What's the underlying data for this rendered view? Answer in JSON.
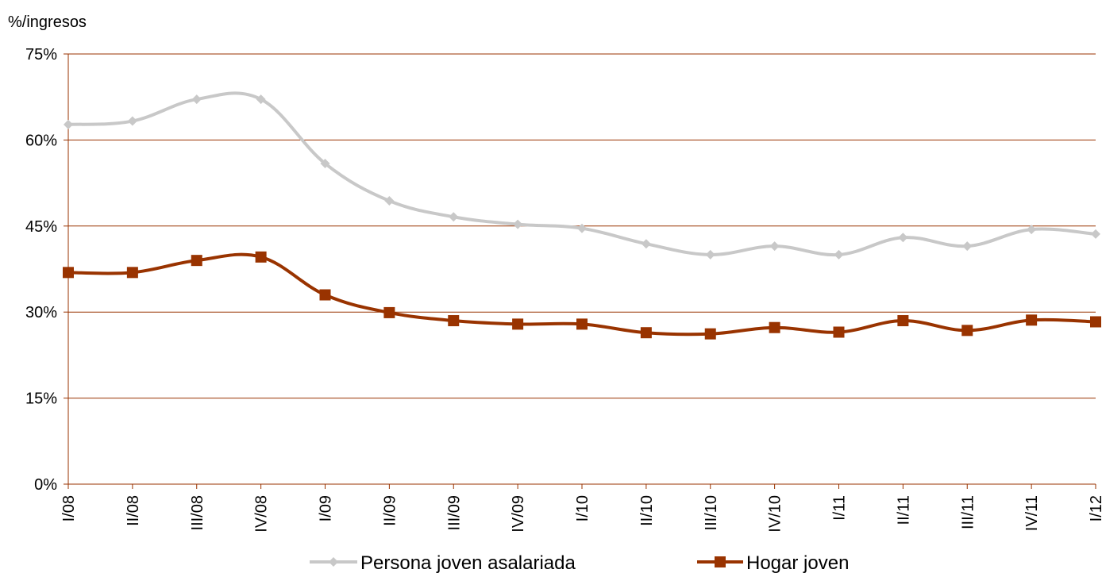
{
  "chart_data": {
    "type": "line",
    "ylabel": "%/ingresos",
    "categories": [
      "I/08",
      "II/08",
      "III/08",
      "IV/08",
      "I/09",
      "II/09",
      "III/09",
      "IV/09",
      "I/10",
      "II/10",
      "III/10",
      "IV/10",
      "I/11",
      "II/11",
      "III/11",
      "IV/11",
      "I/12"
    ],
    "ylim": [
      0,
      75
    ],
    "yticks": [
      0,
      15,
      30,
      45,
      60,
      75
    ],
    "ytick_labels": [
      "0%",
      "15%",
      "30%",
      "45%",
      "60%",
      "75%"
    ],
    "grid": true,
    "legend_position": "bottom",
    "series": [
      {
        "name": "Persona joven asalariada",
        "color": "#c8c8c8",
        "marker": "diamond",
        "values": [
          62.7,
          63.3,
          67.1,
          67.1,
          55.9,
          49.4,
          46.6,
          45.3,
          44.6,
          41.9,
          40.0,
          41.5,
          40.0,
          43.0,
          41.5,
          44.4,
          43.6
        ]
      },
      {
        "name": "Hogar joven",
        "color": "#993300",
        "marker": "square",
        "values": [
          36.9,
          36.9,
          39.0,
          39.6,
          33.0,
          29.9,
          28.5,
          27.9,
          27.9,
          26.4,
          26.2,
          27.3,
          26.5,
          28.5,
          26.8,
          28.6,
          28.3
        ]
      }
    ]
  }
}
